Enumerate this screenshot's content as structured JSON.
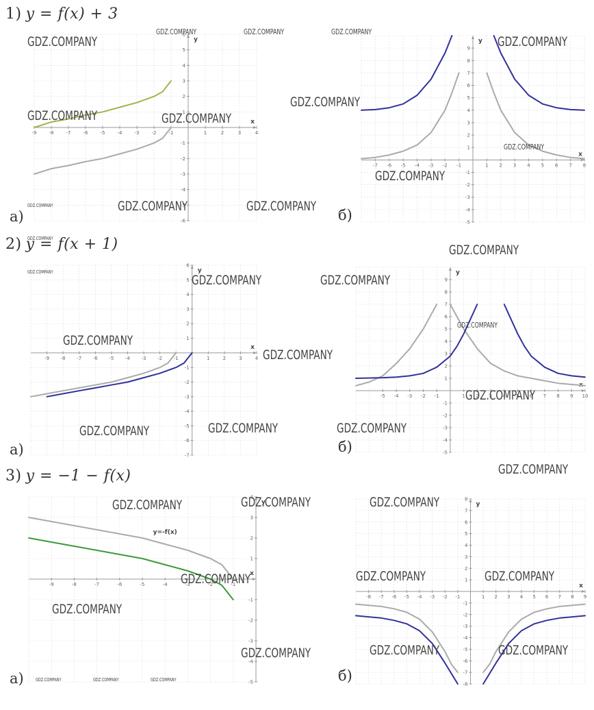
{
  "sections": [
    {
      "label": "1)",
      "formula": "y = f(x) + 3"
    },
    {
      "label": "2)",
      "formula": "y = f(x + 1)"
    },
    {
      "label": "3)",
      "formula": "y = −1 − f(x)"
    }
  ],
  "sublabels": {
    "a": "а)",
    "b": "б)"
  },
  "watermark": "GDZ.COMPANY",
  "colors": {
    "grey": "#aaaaaa",
    "olive": "#a8b04a",
    "navy": "#30309a",
    "green": "#3a9a3a",
    "grid": "#dddddd",
    "axis": "#999999"
  },
  "chart_data": [
    {
      "type": "line",
      "id": "1a",
      "xlim": [
        -9,
        4
      ],
      "ylim": [
        -6,
        6
      ],
      "xlabel": "x",
      "ylabel": "y",
      "xticks": [
        -9,
        -8,
        -7,
        -6,
        -5,
        -4,
        -3,
        -2,
        -1,
        1,
        2,
        3,
        4
      ],
      "yticks": [
        -6,
        -5,
        -4,
        -3,
        -2,
        -1,
        1,
        2,
        3,
        4,
        5,
        6
      ],
      "series": [
        {
          "color": "grey",
          "x": [
            -9,
            -8,
            -7,
            -6,
            -5,
            -4,
            -3,
            -2,
            -1.5,
            -1
          ],
          "y": [
            -3,
            -2.65,
            -2.45,
            -2.2,
            -2,
            -1.7,
            -1.4,
            -1,
            -0.7,
            0
          ]
        },
        {
          "color": "olive",
          "x": [
            -9,
            -8,
            -7,
            -6,
            -5,
            -4,
            -3,
            -2,
            -1.5,
            -1
          ],
          "y": [
            0,
            0.35,
            0.55,
            0.8,
            1,
            1.3,
            1.6,
            2,
            2.3,
            3
          ]
        }
      ]
    },
    {
      "type": "line",
      "id": "1b",
      "xlim": [
        -8,
        8
      ],
      "ylim": [
        -5,
        10
      ],
      "xlabel": "x",
      "ylabel": "y",
      "xticks": [
        -7,
        -6,
        -5,
        -4,
        -3,
        -2,
        -1,
        1,
        2,
        3,
        4,
        5,
        6,
        7,
        8
      ],
      "yticks": [
        -5,
        -4,
        -3,
        -2,
        -1,
        1,
        2,
        3,
        4,
        5,
        6,
        7,
        8,
        9
      ],
      "series": [
        {
          "color": "grey",
          "x": [
            -8,
            -7,
            -6,
            -5,
            -4,
            -3,
            -2,
            -1.5,
            -1
          ],
          "y": [
            0.1,
            0.2,
            0.4,
            0.7,
            1.2,
            2.2,
            4,
            5.4,
            7
          ]
        },
        {
          "color": "grey",
          "x": [
            1,
            1.5,
            2,
            3,
            4,
            5,
            6,
            7,
            8
          ],
          "y": [
            7,
            5.4,
            4,
            2.2,
            1.2,
            0.7,
            0.4,
            0.2,
            0.1
          ]
        },
        {
          "color": "navy",
          "x": [
            -8,
            -7,
            -6,
            -5,
            -4,
            -3,
            -2,
            -1.5
          ],
          "y": [
            4,
            4.05,
            4.2,
            4.5,
            5.2,
            6.5,
            8.6,
            10
          ]
        },
        {
          "color": "navy",
          "x": [
            1.5,
            2,
            3,
            4,
            5,
            6,
            7,
            8
          ],
          "y": [
            10,
            8.6,
            6.5,
            5.2,
            4.5,
            4.2,
            4.05,
            4
          ]
        }
      ]
    },
    {
      "type": "line",
      "id": "2a",
      "xlim": [
        -10,
        4
      ],
      "ylim": [
        -7,
        6
      ],
      "xlabel": "x",
      "ylabel": "y",
      "xticks": [
        -9,
        -8,
        -7,
        -6,
        -5,
        -4,
        -3,
        -2,
        -1,
        1,
        2,
        3,
        4
      ],
      "yticks": [
        -7,
        -6,
        -5,
        -4,
        -3,
        -2,
        -1,
        1,
        2,
        3,
        4,
        5,
        6
      ],
      "series": [
        {
          "color": "grey",
          "x": [
            -10,
            -9,
            -8,
            -7,
            -6,
            -5,
            -4,
            -3,
            -2,
            -1.5,
            -1
          ],
          "y": [
            -3,
            -2.8,
            -2.6,
            -2.4,
            -2.2,
            -2,
            -1.7,
            -1.4,
            -1,
            -0.7,
            0
          ]
        },
        {
          "color": "navy",
          "x": [
            -9,
            -8,
            -7,
            -6,
            -5,
            -4,
            -3,
            -2,
            -1,
            -0.5,
            0
          ],
          "y": [
            -3,
            -2.8,
            -2.6,
            -2.4,
            -2.2,
            -2,
            -1.7,
            -1.4,
            -1,
            -0.7,
            0
          ]
        }
      ]
    },
    {
      "type": "line",
      "id": "2b",
      "xlim": [
        -7,
        10
      ],
      "ylim": [
        -5,
        10
      ],
      "xlabel": "x",
      "ylabel": "y",
      "xticks": [
        -5,
        -4,
        -3,
        -2,
        -1,
        1,
        2,
        3,
        4,
        5,
        6,
        7,
        8,
        9,
        10
      ],
      "yticks": [
        -5,
        -4,
        -3,
        -2,
        -1,
        1,
        2,
        3,
        4,
        5,
        6,
        7,
        8,
        9
      ],
      "series": [
        {
          "color": "grey",
          "x": [
            -7,
            -6,
            -5,
            -4,
            -3,
            -2,
            -1.5,
            -1
          ],
          "y": [
            0.4,
            0.7,
            1.2,
            2.2,
            3.4,
            5,
            6,
            7
          ]
        },
        {
          "color": "grey",
          "x": [
            0,
            0.5,
            1,
            2,
            3,
            4,
            5,
            6,
            7,
            8,
            9,
            10
          ],
          "y": [
            7,
            6,
            5,
            3.4,
            2.2,
            1.6,
            1.2,
            1,
            0.8,
            0.6,
            0.5,
            0.4
          ]
        },
        {
          "color": "navy",
          "x": [
            -7,
            -5,
            -4,
            -3,
            -2,
            -1,
            0,
            0.5,
            1,
            1.5,
            2
          ],
          "y": [
            1,
            1.05,
            1.1,
            1.2,
            1.4,
            1.9,
            2.8,
            3.6,
            4.6,
            5.8,
            7
          ]
        },
        {
          "color": "navy",
          "x": [
            4,
            4.5,
            5,
            5.5,
            6,
            7,
            8,
            9,
            10
          ],
          "y": [
            7,
            5.8,
            4.6,
            3.6,
            2.8,
            1.9,
            1.4,
            1.2,
            1.1
          ]
        }
      ]
    },
    {
      "type": "line",
      "id": "3a",
      "xlim": [
        -10,
        0
      ],
      "ylim": [
        -5,
        4
      ],
      "xlabel": "x",
      "ylabel": "y",
      "xticks": [
        -9,
        -8,
        -7,
        -6,
        -5,
        -4,
        -3,
        -2,
        -1
      ],
      "yticks": [
        -5,
        -4,
        -3,
        -2,
        -1,
        1,
        2,
        3,
        4
      ],
      "annotation": "y=-f(x)",
      "series": [
        {
          "color": "grey",
          "x": [
            -10,
            -9,
            -8,
            -7,
            -6,
            -5,
            -4,
            -3,
            -2,
            -1.5,
            -1
          ],
          "y": [
            3,
            2.8,
            2.6,
            2.4,
            2.2,
            2,
            1.7,
            1.4,
            1,
            0.7,
            0
          ]
        },
        {
          "color": "green",
          "x": [
            -10,
            -9,
            -8,
            -7,
            -6,
            -5,
            -4,
            -3,
            -2,
            -1.5,
            -1
          ],
          "y": [
            2,
            1.8,
            1.6,
            1.4,
            1.2,
            1,
            0.7,
            0.4,
            0,
            -0.3,
            -1
          ]
        }
      ]
    },
    {
      "type": "line",
      "id": "3b",
      "xlim": [
        -9,
        9
      ],
      "ylim": [
        -8,
        8
      ],
      "xlabel": "x",
      "ylabel": "y",
      "xticks": [
        -8,
        -7,
        -6,
        -5,
        -4,
        -3,
        -2,
        -1,
        1,
        2,
        3,
        4,
        5,
        6,
        7,
        8,
        9
      ],
      "yticks": [
        -8,
        -7,
        -6,
        -5,
        -4,
        -3,
        -2,
        -1,
        1,
        2,
        3,
        4,
        5,
        6,
        7,
        8
      ],
      "series": [
        {
          "color": "grey",
          "x": [
            -9,
            -8,
            -7,
            -6,
            -5,
            -4,
            -3,
            -2,
            -1.5,
            -1
          ],
          "y": [
            -1.1,
            -1.2,
            -1.3,
            -1.5,
            -1.8,
            -2.4,
            -3.5,
            -5.2,
            -6.3,
            -7
          ]
        },
        {
          "color": "grey",
          "x": [
            1,
            1.5,
            2,
            3,
            4,
            5,
            6,
            7,
            8,
            9
          ],
          "y": [
            -7,
            -6.3,
            -5.2,
            -3.5,
            -2.4,
            -1.8,
            -1.5,
            -1.3,
            -1.2,
            -1.1
          ]
        },
        {
          "color": "navy",
          "x": [
            -9,
            -8,
            -7,
            -6,
            -5,
            -4,
            -3,
            -2,
            -1.5,
            -1
          ],
          "y": [
            -2.1,
            -2.2,
            -2.3,
            -2.5,
            -2.8,
            -3.4,
            -4.5,
            -6.2,
            -7.1,
            -8
          ]
        },
        {
          "color": "navy",
          "x": [
            1,
            1.5,
            2,
            3,
            4,
            5,
            6,
            7,
            8,
            9
          ],
          "y": [
            -8,
            -7.1,
            -6.2,
            -4.5,
            -3.4,
            -2.8,
            -2.5,
            -2.3,
            -2.2,
            -2.1
          ]
        }
      ]
    }
  ]
}
